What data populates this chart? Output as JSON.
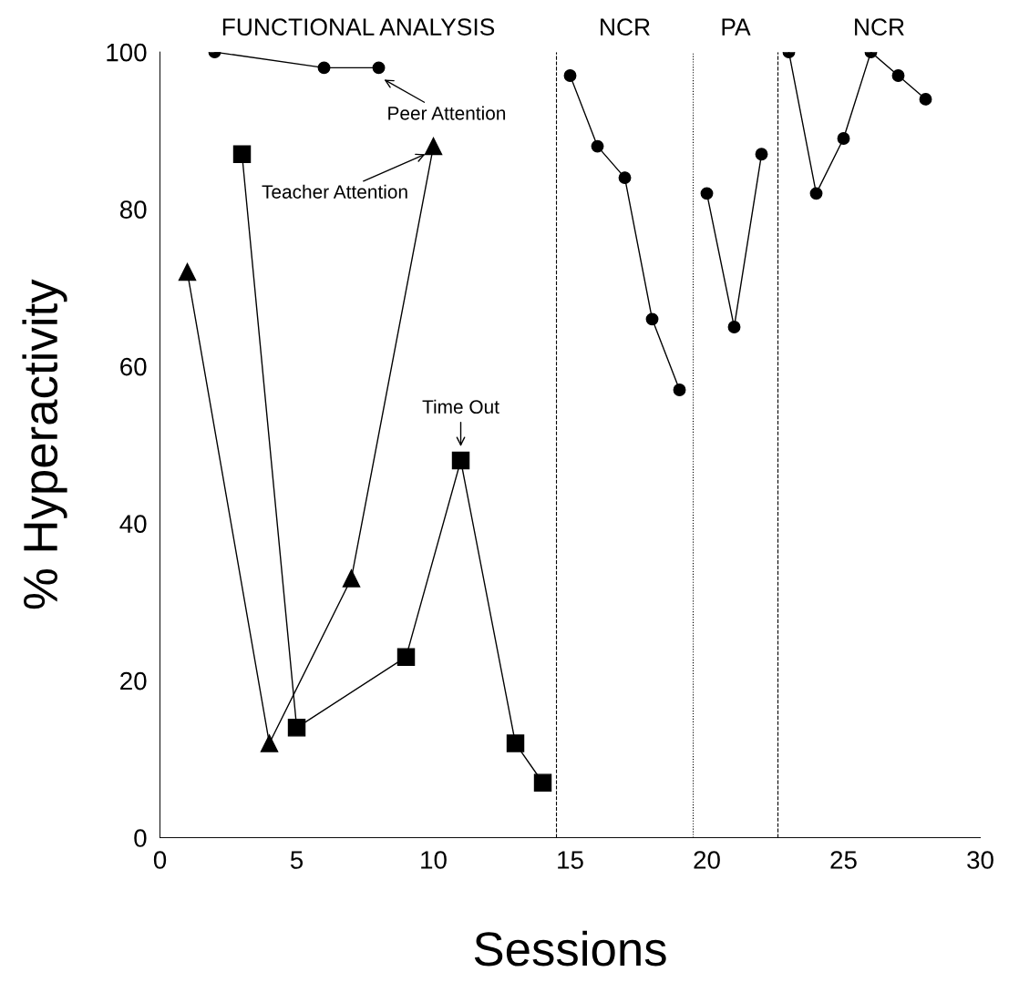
{
  "chart_data": {
    "type": "line",
    "xlabel": "Sessions",
    "ylabel": "% Hyperactivity",
    "xlim": [
      0,
      30
    ],
    "xticks": [
      0,
      5,
      10,
      15,
      20,
      25,
      30
    ],
    "ylim": [
      0,
      100
    ],
    "yticks": [
      0,
      20,
      40,
      60,
      80,
      100
    ],
    "grid": false,
    "legend": "top",
    "line_style": "solid",
    "series": [
      {
        "name": "Peer Attention",
        "color": "#000000",
        "marker": "circle",
        "x": [
          2,
          6,
          8
        ],
        "values": [
          100,
          98,
          98
        ]
      },
      {
        "name": "Teacher Attention",
        "color": "#000000",
        "marker": "triangle",
        "x": [
          1,
          4,
          7,
          10
        ],
        "values": [
          72,
          12,
          33,
          88
        ]
      },
      {
        "name": "Time Out",
        "color": "#000000",
        "marker": "square",
        "x": [
          3,
          5,
          9,
          11,
          13,
          14
        ],
        "values": [
          87,
          14,
          23,
          48,
          12,
          7
        ]
      },
      {
        "color": "#000000",
        "marker": "circle",
        "x": [
          15,
          16,
          17,
          18,
          19
        ],
        "values": [
          97,
          88,
          84,
          66,
          57
        ]
      },
      {
        "color": "#000000",
        "marker": "circle",
        "x": [
          20,
          21,
          22
        ],
        "values": [
          82,
          65,
          87
        ]
      },
      {
        "color": "#000000",
        "marker": "circle",
        "x": [
          23,
          24,
          25,
          26,
          27,
          28
        ],
        "values": [
          100,
          82,
          89,
          100,
          97,
          94
        ]
      }
    ],
    "ref_lines": [
      {
        "axis": "x",
        "value": 14.5,
        "color": "#000000",
        "line_style": "dashed"
      },
      {
        "axis": "x",
        "value": 19.5,
        "color": "#000000",
        "line_style": "dotted"
      },
      {
        "axis": "x",
        "value": 22.6,
        "color": "#000000",
        "line_style": "dashed"
      }
    ],
    "annotations": [
      "FUNCTIONAL ANALYSIS",
      "NCR",
      "PA",
      "NCR"
    ]
  }
}
